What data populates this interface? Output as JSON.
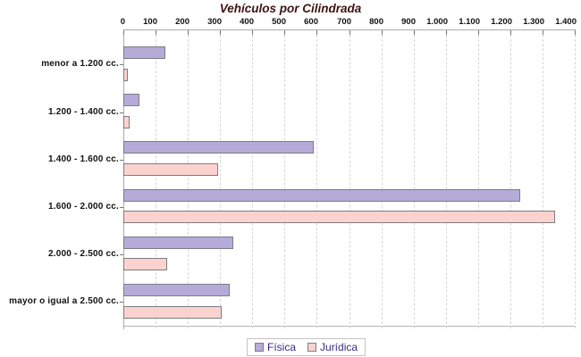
{
  "title": "Vehículos por Cilindrada",
  "chart_data": {
    "type": "bar",
    "orientation": "horizontal",
    "title": "Vehículos por Cilindrada",
    "categories": [
      "menor a 1.200 cc.",
      "1.200 - 1.400 cc.",
      "1.400 - 1.600 cc.",
      "1.600 - 2.000 cc.",
      "2.000 - 2.500 cc.",
      "mayor o igual a 2.500 cc."
    ],
    "series": [
      {
        "name": "Física",
        "color": "#b5abd8",
        "values": [
          130,
          50,
          590,
          1230,
          340,
          330
        ]
      },
      {
        "name": "Jurídica",
        "color": "#fcd2cf",
        "values": [
          15,
          20,
          295,
          1340,
          135,
          305
        ]
      }
    ],
    "xlim": [
      0,
      1400
    ],
    "x_tick_step": 100,
    "x_tick_labels": [
      "0",
      "100",
      "200",
      "300",
      "400",
      "500",
      "600",
      "700",
      "800",
      "900",
      "1.000",
      "1.100",
      "1.200",
      "1.300",
      "1.400"
    ],
    "grid": "vertical-dashed",
    "legend_position": "bottom-center"
  },
  "legend": {
    "items": [
      {
        "label": "Física",
        "color": "#b5abd8"
      },
      {
        "label": "Jurídica",
        "color": "#fcd2cf"
      }
    ]
  },
  "colors": {
    "title_text": "#3d1410",
    "legend_text": "#3a2b80",
    "axis": "#a9a9a9",
    "grid": "#d6d6d6",
    "bar_border": "#7c7c84",
    "fisica_fill": "#b5abd8",
    "juridica_fill": "#fcd2cf"
  }
}
